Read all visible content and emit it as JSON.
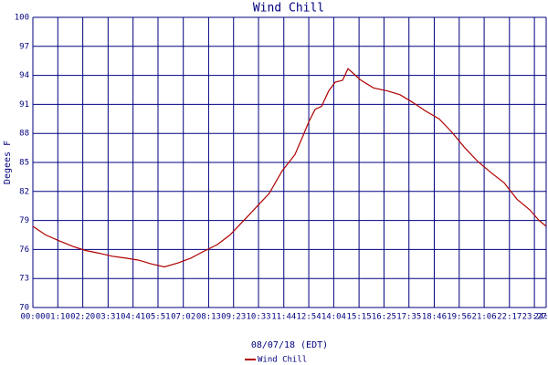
{
  "chart_data": {
    "type": "line",
    "title": "Wind Chill",
    "x_label": "08/07/18 (EDT)",
    "y_label": "Degees F",
    "xlim": [
      0,
      1440
    ],
    "ylim": [
      70,
      100
    ],
    "xticks": [
      {
        "value": 0,
        "label": "00:00"
      },
      {
        "value": 70,
        "label": "01:10"
      },
      {
        "value": 140,
        "label": "02:20"
      },
      {
        "value": 211,
        "label": "03:31"
      },
      {
        "value": 281,
        "label": "04:41"
      },
      {
        "value": 351,
        "label": "05:51"
      },
      {
        "value": 422,
        "label": "07:02"
      },
      {
        "value": 493,
        "label": "08:13"
      },
      {
        "value": 563,
        "label": "09:23"
      },
      {
        "value": 633,
        "label": "10:33"
      },
      {
        "value": 704,
        "label": "11:44"
      },
      {
        "value": 774,
        "label": "12:54"
      },
      {
        "value": 844,
        "label": "14:04"
      },
      {
        "value": 915,
        "label": "15:15"
      },
      {
        "value": 985,
        "label": "16:25"
      },
      {
        "value": 1055,
        "label": "17:35"
      },
      {
        "value": 1126,
        "label": "18:46"
      },
      {
        "value": 1196,
        "label": "19:56"
      },
      {
        "value": 1266,
        "label": "21:06"
      },
      {
        "value": 1337,
        "label": "22:17"
      },
      {
        "value": 1407,
        "label": "23:27"
      },
      {
        "value": 1440,
        "label": "24:00"
      }
    ],
    "yticks": [
      70,
      73,
      76,
      79,
      82,
      85,
      88,
      91,
      94,
      97,
      100
    ],
    "grid": true,
    "grid_color": "#000080",
    "legend": "bottom",
    "x": [
      0,
      36,
      74,
      113,
      148,
      187,
      223,
      261,
      297,
      333,
      369,
      407,
      443,
      479,
      517,
      553,
      589,
      625,
      663,
      699,
      735,
      756,
      774,
      792,
      810,
      830,
      848,
      869,
      884,
      902,
      920,
      956,
      994,
      1030,
      1066,
      1102,
      1140,
      1176,
      1212,
      1248,
      1287,
      1322,
      1358,
      1394,
      1420,
      1440
    ],
    "series": [
      {
        "name": "Wind Chill",
        "color": "#b00000",
        "values": [
          78.4,
          77.5,
          76.9,
          76.3,
          75.9,
          75.6,
          75.3,
          75.1,
          74.9,
          74.5,
          74.2,
          74.6,
          75.1,
          75.8,
          76.5,
          77.5,
          78.9,
          80.3,
          81.8,
          84.1,
          85.8,
          87.6,
          89.2,
          90.5,
          90.8,
          92.4,
          93.3,
          93.5,
          94.7,
          94.1,
          93.5,
          92.7,
          92.4,
          92.0,
          91.2,
          90.3,
          89.5,
          88.1,
          86.5,
          85.1,
          83.9,
          82.9,
          81.2,
          80.1,
          79.0,
          78.4
        ]
      }
    ]
  }
}
